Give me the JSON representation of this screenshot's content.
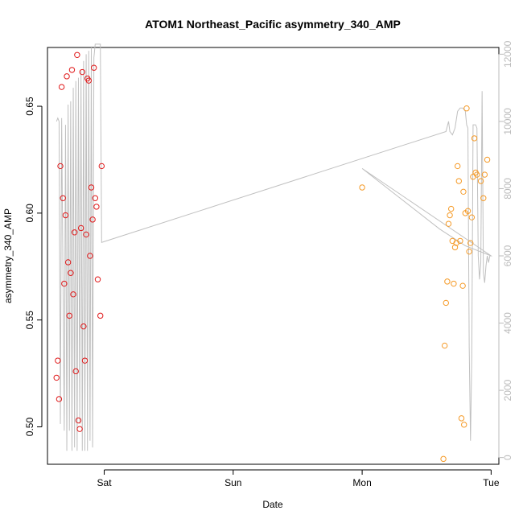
{
  "chart_data": {
    "type": "scatter",
    "title": "ATOM1 Northeast_Pacific asymmetry_340_AMP",
    "xlabel": "Date",
    "ylabel": "asymmetry_340_AMP",
    "x_ticks": [
      "Sat",
      "Sun",
      "Mon",
      "Tue"
    ],
    "xlim_days": [
      -0.44,
      3.06
    ],
    "ylim": [
      0.4825,
      0.6775
    ],
    "y_ticks": [
      0.5,
      0.55,
      0.6,
      0.65
    ],
    "y2_ticks": [
      0,
      2000,
      4000,
      6000,
      8000,
      10000,
      12000
    ],
    "y2lim": [
      -200,
      12200
    ],
    "colors": {
      "series1": "#e0191a",
      "series2": "#f59a27",
      "secondary_line": "#c0c0c0",
      "axis": "#000000",
      "right_axis": "#bbbbbb"
    },
    "series": [
      {
        "color": "red",
        "points": [
          [
            -0.37,
            0.523
          ],
          [
            -0.36,
            0.531
          ],
          [
            -0.35,
            0.513
          ],
          [
            -0.34,
            0.622
          ],
          [
            -0.33,
            0.659
          ],
          [
            -0.32,
            0.607
          ],
          [
            -0.31,
            0.567
          ],
          [
            -0.3,
            0.599
          ],
          [
            -0.29,
            0.664
          ],
          [
            -0.28,
            0.577
          ],
          [
            -0.27,
            0.552
          ],
          [
            -0.26,
            0.572
          ],
          [
            -0.25,
            0.667
          ],
          [
            -0.24,
            0.562
          ],
          [
            -0.23,
            0.591
          ],
          [
            -0.22,
            0.526
          ],
          [
            -0.21,
            0.674
          ],
          [
            -0.2,
            0.503
          ],
          [
            -0.19,
            0.499
          ],
          [
            -0.18,
            0.593
          ],
          [
            -0.17,
            0.666
          ],
          [
            -0.16,
            0.547
          ],
          [
            -0.15,
            0.531
          ],
          [
            -0.14,
            0.59
          ],
          [
            -0.13,
            0.663
          ],
          [
            -0.12,
            0.662
          ],
          [
            -0.11,
            0.58
          ],
          [
            -0.1,
            0.612
          ],
          [
            -0.09,
            0.597
          ],
          [
            -0.08,
            0.668
          ],
          [
            -0.07,
            0.607
          ],
          [
            -0.06,
            0.603
          ],
          [
            -0.05,
            0.569
          ],
          [
            -0.03,
            0.552
          ],
          [
            -0.02,
            0.622
          ]
        ]
      },
      {
        "color": "orange",
        "points": [
          [
            2.0,
            0.612
          ],
          [
            2.63,
            0.485
          ],
          [
            2.64,
            0.538
          ],
          [
            2.65,
            0.558
          ],
          [
            2.66,
            0.568
          ],
          [
            2.67,
            0.595
          ],
          [
            2.68,
            0.599
          ],
          [
            2.69,
            0.602
          ],
          [
            2.7,
            0.587
          ],
          [
            2.71,
            0.567
          ],
          [
            2.72,
            0.584
          ],
          [
            2.73,
            0.586
          ],
          [
            2.74,
            0.622
          ],
          [
            2.75,
            0.615
          ],
          [
            2.76,
            0.587
          ],
          [
            2.77,
            0.504
          ],
          [
            2.78,
            0.566
          ],
          [
            2.785,
            0.61
          ],
          [
            2.79,
            0.501
          ],
          [
            2.8,
            0.6
          ],
          [
            2.81,
            0.649
          ],
          [
            2.82,
            0.601
          ],
          [
            2.83,
            0.582
          ],
          [
            2.84,
            0.586
          ],
          [
            2.85,
            0.598
          ],
          [
            2.86,
            0.617
          ],
          [
            2.87,
            0.635
          ],
          [
            2.88,
            0.619
          ],
          [
            2.89,
            0.618
          ],
          [
            2.92,
            0.615
          ],
          [
            2.94,
            0.607
          ],
          [
            2.95,
            0.618
          ],
          [
            2.97,
            0.625
          ]
        ]
      }
    ],
    "secondary_line": [
      [
        -0.37,
        10000
      ],
      [
        -0.36,
        10100
      ],
      [
        -0.35,
        10000
      ],
      [
        -0.34,
        1000
      ],
      [
        -0.33,
        10100
      ],
      [
        -0.31,
        800
      ],
      [
        -0.3,
        9900
      ],
      [
        -0.29,
        200
      ],
      [
        -0.28,
        10500
      ],
      [
        -0.27,
        800
      ],
      [
        -0.26,
        10600
      ],
      [
        -0.25,
        200
      ],
      [
        -0.24,
        11000
      ],
      [
        -0.23,
        300
      ],
      [
        -0.22,
        11200
      ],
      [
        -0.21,
        200
      ],
      [
        -0.2,
        11300
      ],
      [
        -0.19,
        1000
      ],
      [
        -0.18,
        11500
      ],
      [
        -0.17,
        200
      ],
      [
        -0.16,
        11800
      ],
      [
        -0.15,
        200
      ],
      [
        -0.14,
        12000
      ],
      [
        -0.13,
        200
      ],
      [
        -0.12,
        12100
      ],
      [
        -0.11,
        500
      ],
      [
        -0.1,
        12200
      ],
      [
        -0.09,
        300
      ],
      [
        -0.08,
        11900
      ],
      [
        -0.07,
        12300
      ],
      [
        -0.06,
        12300
      ],
      [
        -0.05,
        12300
      ],
      [
        -0.04,
        12300
      ],
      [
        -0.03,
        12300
      ],
      [
        -0.02,
        6400
      ],
      [
        2.65,
        9700
      ],
      [
        2.67,
        10000
      ],
      [
        2.68,
        9700
      ],
      [
        2.7,
        9600
      ],
      [
        2.72,
        9800
      ],
      [
        2.74,
        10300
      ],
      [
        2.76,
        10400
      ],
      [
        2.78,
        10400
      ],
      [
        2.8,
        10300
      ],
      [
        2.81,
        9900
      ],
      [
        2.82,
        9800
      ],
      [
        2.83,
        3300
      ],
      [
        2.84,
        500
      ],
      [
        2.85,
        3000
      ],
      [
        2.86,
        9900
      ],
      [
        2.87,
        9900
      ],
      [
        2.88,
        9900
      ],
      [
        2.89,
        9800
      ],
      [
        2.9,
        6000
      ],
      [
        2.91,
        5300
      ],
      [
        2.92,
        5800
      ],
      [
        2.93,
        10900
      ],
      [
        2.94,
        5500
      ],
      [
        2.95,
        5200
      ],
      [
        2.96,
        5700
      ],
      [
        2.97,
        6000
      ],
      [
        2.98,
        5800
      ],
      [
        2.99,
        6000
      ],
      [
        3.0,
        6000
      ],
      [
        2.0,
        8600
      ],
      [
        2.3,
        7700
      ],
      [
        2.6,
        6800
      ],
      [
        2.8,
        6300
      ],
      [
        3.0,
        6000
      ]
    ]
  }
}
